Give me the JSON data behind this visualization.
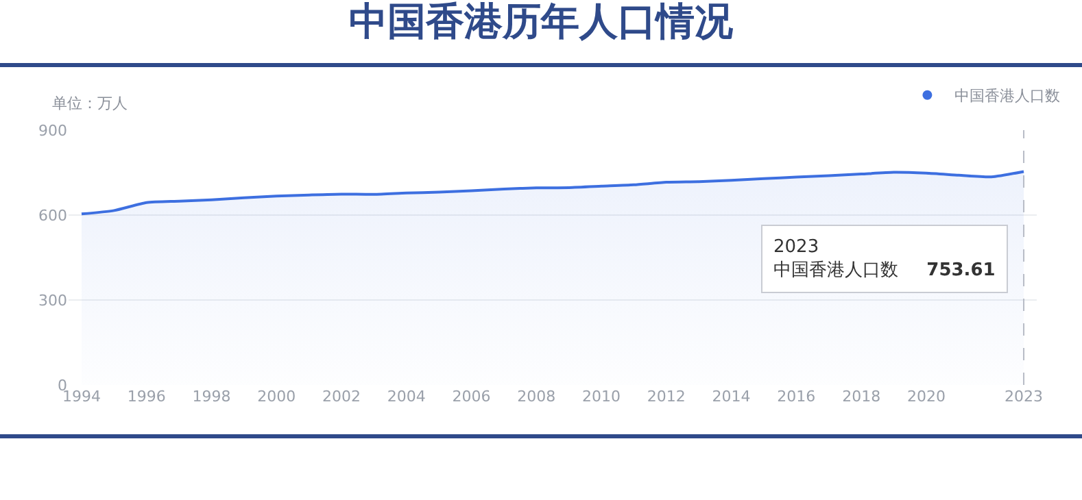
{
  "chart_data": {
    "type": "area",
    "title": "中国香港历年人口情况",
    "ylabel": "单位：万人",
    "x": [
      1994,
      1995,
      1996,
      1997,
      1998,
      1999,
      2000,
      2001,
      2002,
      2003,
      2004,
      2005,
      2006,
      2007,
      2008,
      2009,
      2010,
      2011,
      2012,
      2013,
      2014,
      2015,
      2016,
      2017,
      2018,
      2019,
      2020,
      2021,
      2022,
      2023
    ],
    "series": [
      {
        "name": "中国香港人口数",
        "color": "#3d6fe0",
        "values": [
          604,
          616,
          644,
          649,
          654,
          661,
          667,
          671,
          674,
          673,
          678,
          681,
          686,
          692,
          696,
          697,
          702,
          707,
          716,
          718,
          723,
          729,
          734,
          739,
          745,
          751,
          748,
          741,
          735,
          753.61
        ]
      }
    ],
    "annotations": [
      "2023",
      "753.61"
    ],
    "ref_lines": [
      {
        "axis": "x",
        "value": 2023,
        "line_style": "dashed",
        "color": "#b8bcc6"
      }
    ],
    "xlim": [
      1993.6,
      2023.4
    ],
    "xticks": [
      1994,
      1996,
      1998,
      2000,
      2002,
      2004,
      2006,
      2008,
      2010,
      2012,
      2014,
      2016,
      2018,
      2020,
      2023
    ],
    "ylim": [
      0,
      900
    ],
    "yticks": [
      0,
      300,
      600,
      900
    ],
    "grid": "y",
    "legend": "top right",
    "marker": "none",
    "line_style": "solid"
  }
}
